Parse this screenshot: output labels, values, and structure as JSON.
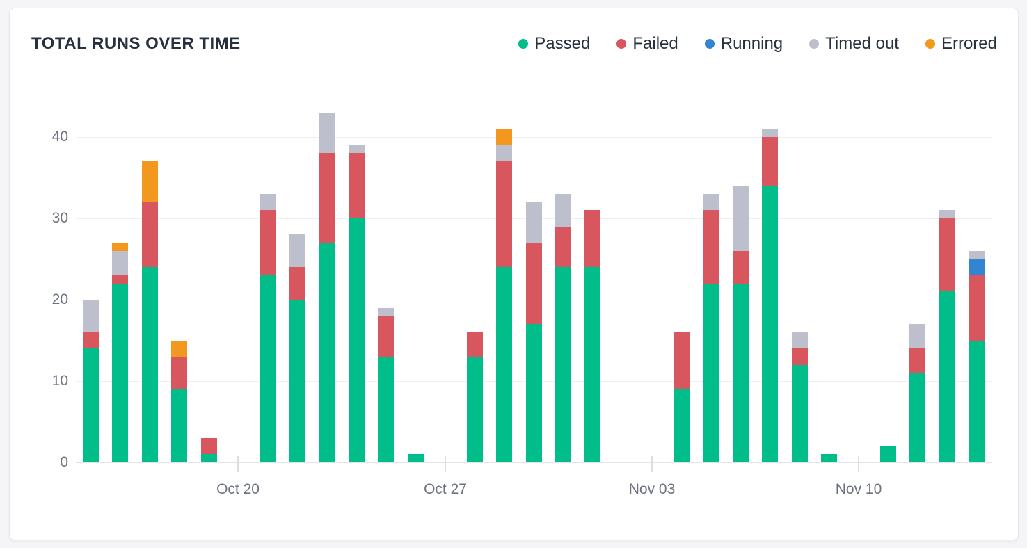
{
  "header": {
    "title": "TOTAL RUNS OVER TIME"
  },
  "legend": [
    {
      "key": "passed",
      "label": "Passed",
      "color": "#00BD8A"
    },
    {
      "key": "failed",
      "label": "Failed",
      "color": "#D8575F"
    },
    {
      "key": "running",
      "label": "Running",
      "color": "#3484D4"
    },
    {
      "key": "timed_out",
      "label": "Timed out",
      "color": "#BDC0CC"
    },
    {
      "key": "errored",
      "label": "Errored",
      "color": "#F3981F"
    }
  ],
  "chart_data": {
    "type": "bar",
    "stacked": true,
    "title": "TOTAL RUNS OVER TIME",
    "xlabel": "",
    "ylabel": "",
    "ylim": [
      0,
      45
    ],
    "yticks": [
      0,
      10,
      20,
      30,
      40
    ],
    "grid": "horizontal",
    "legend_position": "top-right",
    "n_slots": 31,
    "xticks": [
      {
        "slot": 5,
        "label": "Oct 20"
      },
      {
        "slot": 12,
        "label": "Oct 27"
      },
      {
        "slot": 19,
        "label": "Nov 03"
      },
      {
        "slot": 26,
        "label": "Nov 10"
      }
    ],
    "series_order": [
      "passed",
      "failed",
      "running",
      "timed_out",
      "errored"
    ],
    "bars": [
      {
        "slot": 0,
        "passed": 14,
        "failed": 2,
        "running": 0,
        "timed_out": 4,
        "errored": 0,
        "total": 20
      },
      {
        "slot": 1,
        "passed": 22,
        "failed": 1,
        "running": 0,
        "timed_out": 3,
        "errored": 1,
        "total": 27
      },
      {
        "slot": 2,
        "passed": 24,
        "failed": 8,
        "running": 0,
        "timed_out": 0,
        "errored": 5,
        "total": 37
      },
      {
        "slot": 3,
        "passed": 9,
        "failed": 4,
        "running": 0,
        "timed_out": 0,
        "errored": 2,
        "total": 15
      },
      {
        "slot": 4,
        "passed": 1,
        "failed": 2,
        "running": 0,
        "timed_out": 0,
        "errored": 0,
        "total": 3
      },
      {
        "slot": 6,
        "passed": 23,
        "failed": 8,
        "running": 0,
        "timed_out": 2,
        "errored": 0,
        "total": 33
      },
      {
        "slot": 7,
        "passed": 20,
        "failed": 4,
        "running": 0,
        "timed_out": 4,
        "errored": 0,
        "total": 28
      },
      {
        "slot": 8,
        "passed": 27,
        "failed": 11,
        "running": 0,
        "timed_out": 5,
        "errored": 0,
        "total": 43
      },
      {
        "slot": 9,
        "passed": 30,
        "failed": 8,
        "running": 0,
        "timed_out": 1,
        "errored": 0,
        "total": 39
      },
      {
        "slot": 10,
        "passed": 13,
        "failed": 5,
        "running": 0,
        "timed_out": 1,
        "errored": 0,
        "total": 19
      },
      {
        "slot": 11,
        "passed": 1,
        "failed": 0,
        "running": 0,
        "timed_out": 0,
        "errored": 0,
        "total": 1
      },
      {
        "slot": 13,
        "passed": 13,
        "failed": 3,
        "running": 0,
        "timed_out": 0,
        "errored": 0,
        "total": 16
      },
      {
        "slot": 14,
        "passed": 24,
        "failed": 13,
        "running": 0,
        "timed_out": 2,
        "errored": 2,
        "total": 41
      },
      {
        "slot": 15,
        "passed": 17,
        "failed": 10,
        "running": 0,
        "timed_out": 5,
        "errored": 0,
        "total": 32
      },
      {
        "slot": 16,
        "passed": 24,
        "failed": 5,
        "running": 0,
        "timed_out": 4,
        "errored": 0,
        "total": 33
      },
      {
        "slot": 17,
        "passed": 24,
        "failed": 7,
        "running": 0,
        "timed_out": 0,
        "errored": 0,
        "total": 31
      },
      {
        "slot": 20,
        "passed": 9,
        "failed": 7,
        "running": 0,
        "timed_out": 0,
        "errored": 0,
        "total": 16
      },
      {
        "slot": 21,
        "passed": 22,
        "failed": 9,
        "running": 0,
        "timed_out": 2,
        "errored": 0,
        "total": 33
      },
      {
        "slot": 22,
        "passed": 22,
        "failed": 4,
        "running": 0,
        "timed_out": 8,
        "errored": 0,
        "total": 34
      },
      {
        "slot": 23,
        "passed": 34,
        "failed": 6,
        "running": 0,
        "timed_out": 1,
        "errored": 0,
        "total": 41
      },
      {
        "slot": 24,
        "passed": 12,
        "failed": 2,
        "running": 0,
        "timed_out": 2,
        "errored": 0,
        "total": 16
      },
      {
        "slot": 25,
        "passed": 1,
        "failed": 0,
        "running": 0,
        "timed_out": 0,
        "errored": 0,
        "total": 1
      },
      {
        "slot": 27,
        "passed": 2,
        "failed": 0,
        "running": 0,
        "timed_out": 0,
        "errored": 0,
        "total": 2
      },
      {
        "slot": 28,
        "passed": 11,
        "failed": 3,
        "running": 0,
        "timed_out": 3,
        "errored": 0,
        "total": 17
      },
      {
        "slot": 29,
        "passed": 21,
        "failed": 9,
        "running": 0,
        "timed_out": 1,
        "errored": 0,
        "total": 31
      },
      {
        "slot": 30,
        "passed": 15,
        "failed": 8,
        "running": 2,
        "timed_out": 1,
        "errored": 0,
        "total": 26
      }
    ]
  }
}
